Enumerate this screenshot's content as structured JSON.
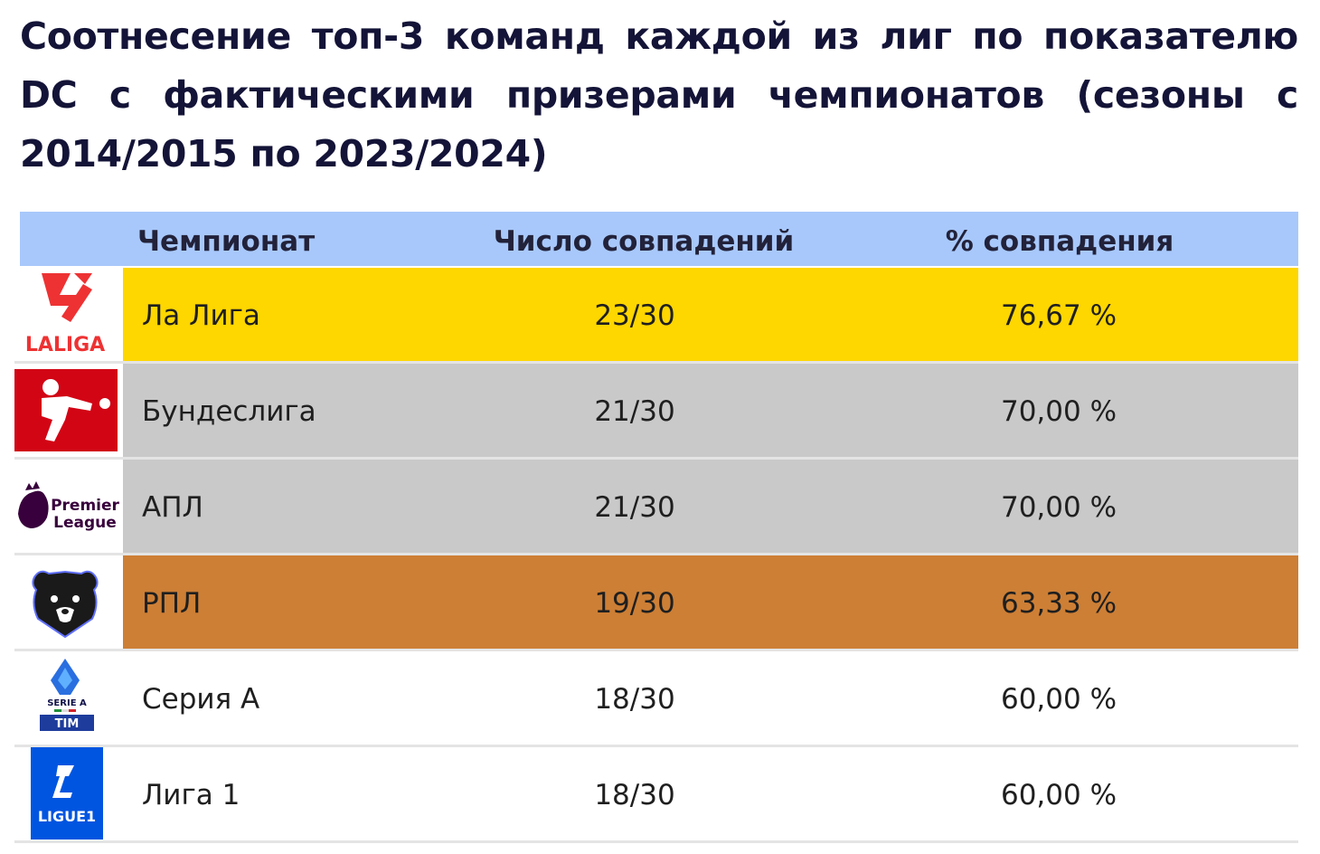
{
  "title": "Соотнесение топ-3 команд каждой из лиг по показателю DC с фактическими призерами чемпионатов (сезоны с 2014/2015 по 2023/2024)",
  "chart_data": {
    "type": "table",
    "columns": [
      "Чемпионат",
      "Число совпадений",
      "% совпадения"
    ],
    "rows": [
      {
        "league": "Ла Лига",
        "matches": "23/30",
        "pct": "76,67 %",
        "value": 76.67,
        "bg": "#fed600",
        "logo": "laliga-logo",
        "logo_text": "LALIGA"
      },
      {
        "league": "Бундеслига",
        "matches": "21/30",
        "pct": "70,00 %",
        "value": 70.0,
        "bg": "#c9c9c9",
        "logo": "bundesliga-logo",
        "logo_text": ""
      },
      {
        "league": "АПЛ",
        "matches": "21/30",
        "pct": "70,00 %",
        "value": 70.0,
        "bg": "#c9c9c9",
        "logo": "premier-league-logo",
        "logo_text": "Premier League"
      },
      {
        "league": "РПЛ",
        "matches": "19/30",
        "pct": "63,33 %",
        "value": 63.33,
        "bg": "#cd7f35",
        "logo": "rpl-logo",
        "logo_text": ""
      },
      {
        "league": "Серия А",
        "matches": "18/30",
        "pct": "60,00 %",
        "value": 60.0,
        "bg": "#ffffff",
        "logo": "serie-a-logo",
        "logo_text": "SERIE A TIM"
      },
      {
        "league": "Лига 1",
        "matches": "18/30",
        "pct": "60,00 %",
        "value": 60.0,
        "bg": "#ffffff",
        "logo": "ligue1-logo",
        "logo_text": "LIGUE1"
      }
    ]
  },
  "colors": {
    "header_bg": "#a8c8fb",
    "title": "#141438",
    "laliga_red": "#ee3233",
    "bundesliga_red": "#d20515",
    "pl_purple": "#38003c",
    "ligue1_blue": "#0055e0"
  }
}
